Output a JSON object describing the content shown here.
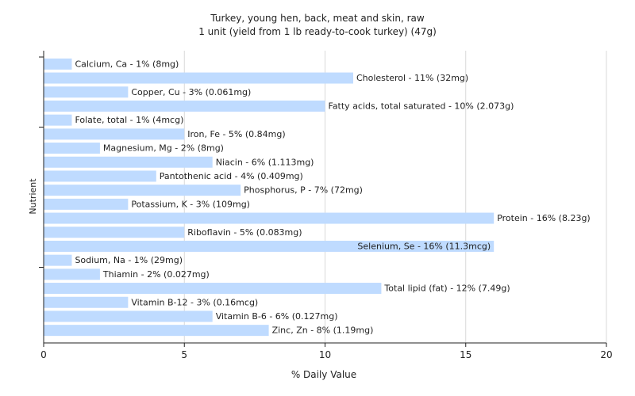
{
  "chart_data": {
    "type": "bar",
    "orientation": "horizontal",
    "title": "Turkey, young hen, back, meat and skin, raw",
    "subtitle": "1 unit (yield from 1 lb ready-to-cook turkey) (47g)",
    "xlabel": "% Daily Value",
    "ylabel": "Nutrient",
    "xlim": [
      0,
      20
    ],
    "xticks": [
      0,
      5,
      10,
      15,
      20
    ],
    "grid": true,
    "categories": [
      "Calcium, Ca",
      "Cholesterol",
      "Copper, Cu",
      "Fatty acids, total saturated",
      "Folate, total",
      "Iron, Fe",
      "Magnesium, Mg",
      "Niacin",
      "Pantothenic acid",
      "Phosphorus, P",
      "Potassium, K",
      "Protein",
      "Riboflavin",
      "Selenium, Se",
      "Sodium, Na",
      "Thiamin",
      "Total lipid (fat)",
      "Vitamin B-12",
      "Vitamin B-6",
      "Zinc, Zn"
    ],
    "values": [
      1,
      11,
      3,
      10,
      1,
      5,
      2,
      6,
      4,
      7,
      3,
      16,
      5,
      16,
      1,
      2,
      12,
      3,
      6,
      8
    ],
    "labels": [
      "Calcium, Ca - 1% (8mg)",
      "Cholesterol - 11% (32mg)",
      "Copper, Cu - 3% (0.061mg)",
      "Fatty acids, total saturated - 10% (2.073g)",
      "Folate, total - 1% (4mcg)",
      "Iron, Fe - 5% (0.84mg)",
      "Magnesium, Mg - 2% (8mg)",
      "Niacin - 6% (1.113mg)",
      "Pantothenic acid - 4% (0.409mg)",
      "Phosphorus, P - 7% (72mg)",
      "Potassium, K - 3% (109mg)",
      "Protein - 16% (8.23g)",
      "Riboflavin - 5% (0.083mg)",
      "Selenium, Se - 16% (11.3mcg)",
      "Sodium, Na - 1% (29mg)",
      "Thiamin - 2% (0.027mg)",
      "Total lipid (fat) - 12% (7.49g)",
      "Vitamin B-12 - 3% (0.16mcg)",
      "Vitamin B-6 - 6% (0.127mg)",
      "Zinc, Zn - 8% (1.19mg)"
    ],
    "colors": {
      "bar": "#bfdbff",
      "grid": "#d9d9d9",
      "axis": "#222222",
      "text": "#222222"
    }
  }
}
